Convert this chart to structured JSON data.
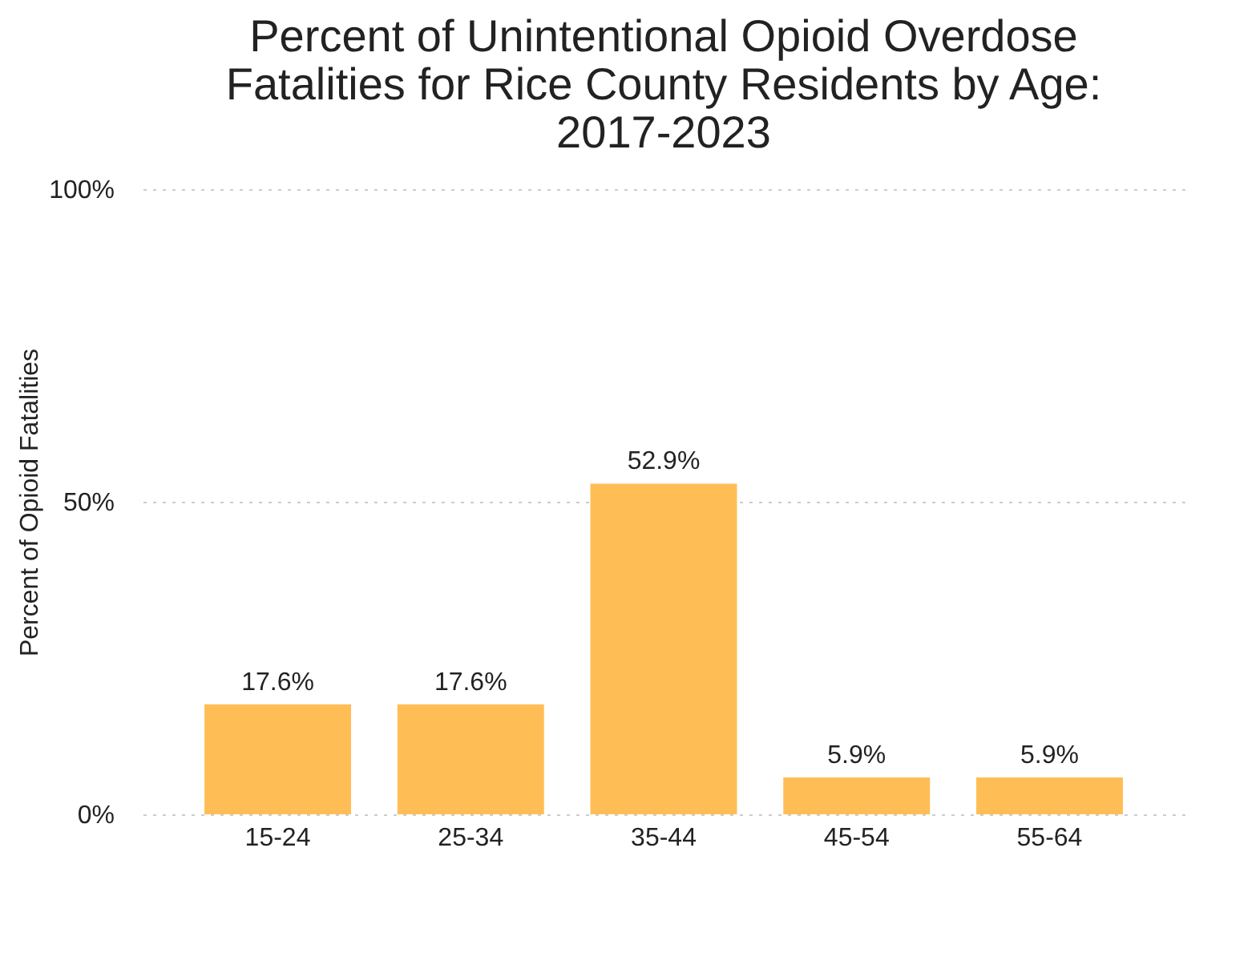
{
  "chart_data": {
    "type": "bar",
    "title": "Percent of Unintentional Opioid Overdose Fatalities for Rice County Residents by Age: 2017-2023",
    "ylabel": "Percent of Opioid Fatalities",
    "categories": [
      "15-24",
      "25-34",
      "35-44",
      "45-54",
      "55-64"
    ],
    "values": [
      17.6,
      17.6,
      52.9,
      5.9,
      5.9
    ],
    "value_labels": [
      "17.6%",
      "17.6%",
      "52.9%",
      "5.9%",
      "5.9%"
    ],
    "color": "#ffbe55",
    "ylim": [
      0,
      100
    ],
    "yticks": [
      {
        "value": 0,
        "label": "0%"
      },
      {
        "value": 50,
        "label": "50%"
      },
      {
        "value": 100,
        "label": "100%"
      }
    ],
    "grid": "y"
  }
}
